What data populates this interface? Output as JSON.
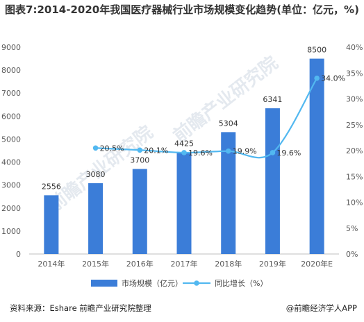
{
  "title": "图表7:2014-2020年我国医疗器械行业市场规模变化趋势(单位：亿元，%)",
  "chart_data": {
    "type": "bar",
    "categories": [
      "2014年",
      "2015年",
      "2016年",
      "2017年",
      "2018年",
      "2019年",
      "2020年E"
    ],
    "series": [
      {
        "name": "市场规模（亿元）",
        "type": "bar",
        "axis": "left",
        "color": "#3b7dd8",
        "values": [
          2556,
          3080,
          3700,
          4425,
          5304,
          6341,
          8500
        ]
      },
      {
        "name": "同比增长（%）",
        "type": "line",
        "axis": "right",
        "color": "#52b8f0",
        "values": [
          null,
          20.5,
          20.1,
          19.6,
          19.9,
          19.6,
          34.0
        ],
        "labels": [
          "",
          "20.5%",
          "20.1%",
          "19.6%",
          "19.9%",
          "19.6%",
          "34.0%"
        ]
      }
    ],
    "ylim": [
      0,
      9000
    ],
    "yticks": [
      0,
      1000,
      2000,
      3000,
      4000,
      5000,
      6000,
      7000,
      8000,
      9000
    ],
    "y2lim": [
      0,
      40
    ],
    "y2ticks": [
      "0%",
      "5%",
      "10%",
      "15%",
      "20%",
      "25%",
      "30%",
      "35%",
      "40%"
    ],
    "legend_position": "bottom",
    "grid": false
  },
  "watermark": "前瞻产业研究院",
  "source": "资料来源：Eshare 前瞻产业研究院整理",
  "credit": "@前瞻经济学人APP"
}
